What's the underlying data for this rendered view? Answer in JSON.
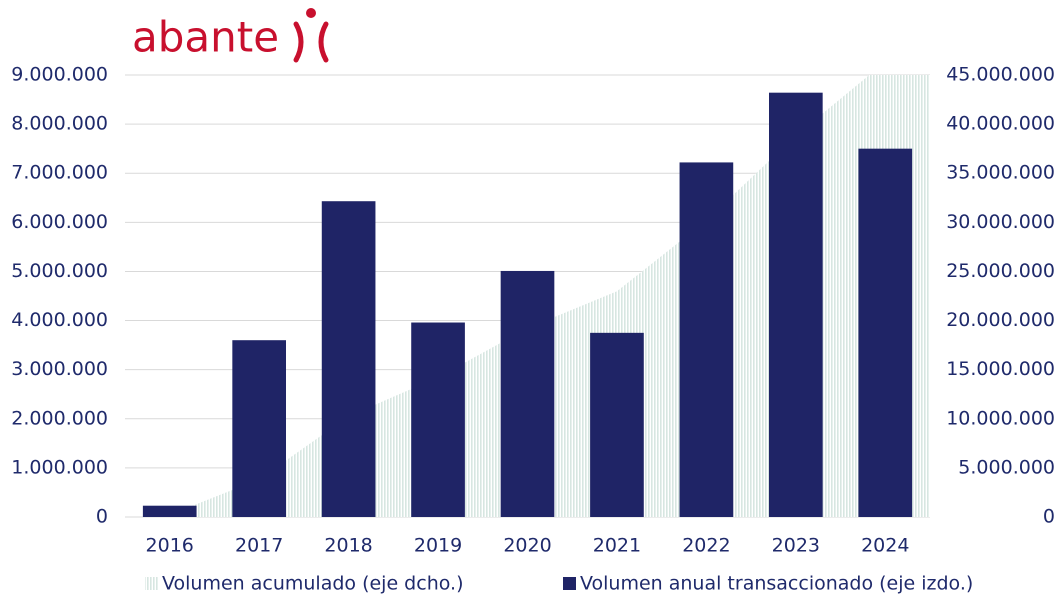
{
  "logo": "abante",
  "chart_data": {
    "type": "bar",
    "categories": [
      "2016",
      "2017",
      "2018",
      "2019",
      "2020",
      "2021",
      "2022",
      "2023",
      "2024"
    ],
    "series": [
      {
        "name": "Volumen acumulado (eje dcho.)",
        "type": "area",
        "axis": "y2",
        "color": "#d7e6e1",
        "values": [
          230000,
          3830000,
          10260000,
          14220000,
          19230000,
          22980000,
          30200000,
          38840000,
          46340000
        ]
      },
      {
        "name": "Volumen anual transaccionado (eje izdo.)",
        "type": "bar",
        "color": "#1f2466",
        "values": [
          230000,
          3600000,
          6430000,
          3960000,
          5010000,
          3750000,
          7220000,
          8640000,
          7500000
        ]
      }
    ],
    "ylim": [
      0,
      9000000
    ],
    "yticks": [
      0,
      {
        "value": 1000000,
        "label": "1.000.000"
      },
      {
        "value": 2000000,
        "label": "2.000.000"
      },
      {
        "value": 3000000,
        "label": "3.000.000"
      },
      {
        "value": 4000000,
        "label": "4.000.000"
      },
      {
        "value": 5000000,
        "label": "5.000.000"
      },
      {
        "value": 6000000,
        "label": "6.000.000"
      },
      {
        "value": 7000000,
        "label": "7.000.000"
      },
      {
        "value": 8000000,
        "label": "8.000.000"
      },
      {
        "value": 9000000,
        "label": "9.000.000"
      }
    ],
    "y2lim": [
      0,
      45000000
    ],
    "y2ticks": [
      0,
      {
        "value": 5000000,
        "label": "5.000.000"
      },
      {
        "value": 10000000,
        "label": "10.000.000"
      },
      {
        "value": 15000000,
        "label": "15.000.000"
      },
      {
        "value": 20000000,
        "label": "20.000.000"
      },
      {
        "value": 25000000,
        "label": "25.000.000"
      },
      {
        "value": 30000000,
        "label": "30.000.000"
      },
      {
        "value": 35000000,
        "label": "35.000.000"
      },
      {
        "value": 40000000,
        "label": "40.000.000"
      },
      {
        "value": 45000000,
        "label": "45.000.000"
      }
    ],
    "grid": true,
    "legend": "bottom"
  }
}
